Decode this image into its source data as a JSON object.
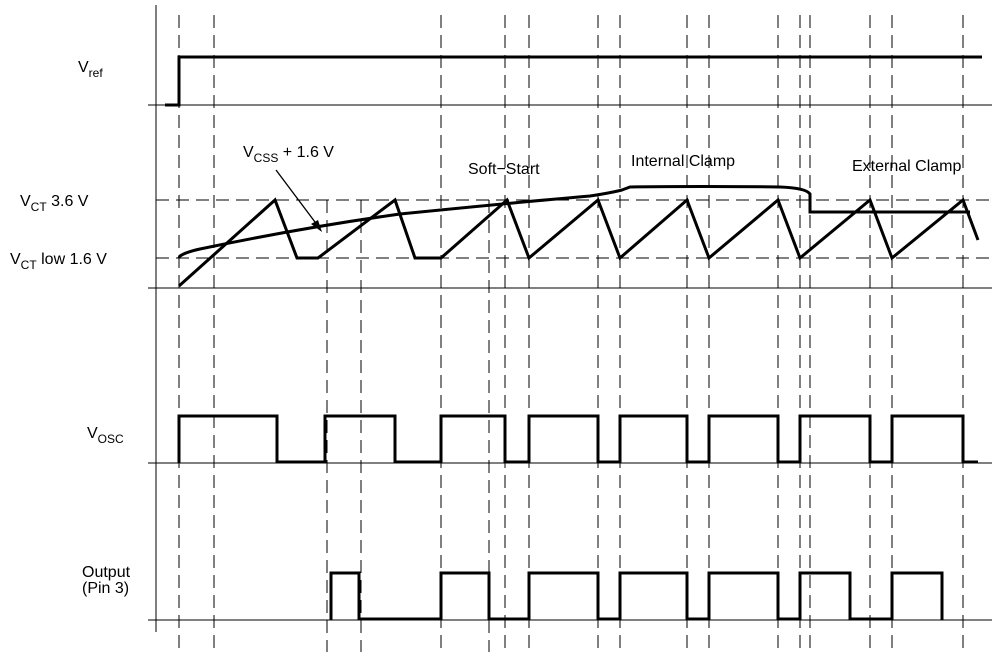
{
  "signals": {
    "vref": {
      "main": "V",
      "sub": "ref",
      "suffix": ""
    },
    "vct_high": {
      "main": "V",
      "sub": "CT",
      "suffix": " 3.6 V"
    },
    "vct_low": {
      "main": "V",
      "sub": "CT",
      "suffix": " low 1.6 V"
    },
    "vosc": {
      "main": "V",
      "sub": "OSC",
      "suffix": ""
    },
    "output_line1": "Output",
    "output_line2": "(Pin 3)"
  },
  "annotations": {
    "vcss": {
      "main": "V",
      "sub": "CSS",
      "suffix": " + 1.6 V"
    },
    "soft_start": "Soft−Start",
    "internal_clamp": "Internal Clamp",
    "external_clamp": "External Clamp"
  },
  "colors": {
    "ink": "#000000",
    "background": "#ffffff"
  }
}
